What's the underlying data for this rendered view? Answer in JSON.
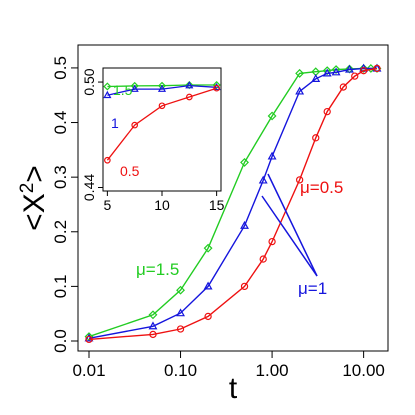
{
  "chart_data": [
    {
      "type": "line",
      "x_scale": "log",
      "xlim": [
        0.01,
        14
      ],
      "ylim": [
        0,
        0.52
      ],
      "x_ticks": [
        0.01,
        0.1,
        1,
        10
      ],
      "x_tick_labels": [
        "0.01",
        "0.10",
        "1.00",
        "10.00"
      ],
      "y_ticks": [
        0,
        0.1,
        0.2,
        0.3,
        0.4,
        0.5
      ],
      "y_tick_labels": [
        "0.0",
        "0.1",
        "0.2",
        "0.3",
        "0.4",
        "0.5"
      ],
      "xlabel": "t",
      "ylabel_parts": [
        "<X",
        "2",
        ">"
      ],
      "grid": false,
      "series": [
        {
          "name": "μ=1.5",
          "color": "#22cc22",
          "marker": "diamond",
          "x": [
            0.01,
            0.05,
            0.1,
            0.2,
            0.5,
            1.0,
            2.0,
            3.0,
            4.0,
            5.0,
            7.0,
            10.0,
            12.0,
            14.0
          ],
          "y": [
            0.008,
            0.048,
            0.093,
            0.17,
            0.327,
            0.412,
            0.49,
            0.493,
            0.495,
            0.497,
            0.498,
            0.499,
            0.499,
            0.499
          ]
        },
        {
          "name": "μ=1",
          "color": "#1515dd",
          "marker": "triangle",
          "x": [
            0.01,
            0.05,
            0.1,
            0.2,
            0.5,
            0.8,
            1.0,
            2.0,
            3.0,
            4.0,
            5.0,
            7.0,
            10.0,
            14.0
          ],
          "y": [
            0.005,
            0.027,
            0.051,
            0.1,
            0.211,
            0.294,
            0.338,
            0.457,
            0.48,
            0.49,
            0.492,
            0.497,
            0.499,
            0.499
          ]
        },
        {
          "name": "μ=0.5",
          "color": "#ee1111",
          "marker": "circle",
          "x": [
            0.01,
            0.05,
            0.1,
            0.2,
            0.5,
            0.8,
            1.0,
            2.0,
            3.0,
            4.0,
            6.0,
            8.0,
            10.0,
            14.0
          ],
          "y": [
            0.003,
            0.012,
            0.022,
            0.045,
            0.1,
            0.15,
            0.182,
            0.295,
            0.372,
            0.42,
            0.465,
            0.485,
            0.495,
            0.499
          ]
        }
      ],
      "labels": {
        "mu15": "μ=1.5",
        "mu1": "μ=1",
        "mu05": "μ=0.5"
      }
    },
    {
      "type": "line",
      "role": "inset",
      "xlim": [
        4.6,
        15.4
      ],
      "ylim": [
        0.438,
        0.508
      ],
      "x_ticks": [
        5,
        10,
        15
      ],
      "x_tick_labels": [
        "5",
        "10",
        "15"
      ],
      "y_ticks": [
        0.44,
        0.5
      ],
      "y_tick_labels": [
        "0.44",
        "0.50"
      ],
      "grid": false,
      "series": [
        {
          "name": "1.5",
          "color": "#22cc22",
          "marker": "diamond",
          "x": [
            5,
            7.5,
            10,
            12.5,
            15
          ],
          "y": [
            0.4975,
            0.4978,
            0.4979,
            0.4983,
            0.4983
          ]
        },
        {
          "name": "1",
          "color": "#1515dd",
          "marker": "triangle",
          "x": [
            5,
            7.5,
            10,
            12.5,
            15
          ],
          "y": [
            0.4925,
            0.496,
            0.496,
            0.498,
            0.497
          ]
        },
        {
          "name": "0.5",
          "color": "#ee1111",
          "marker": "circle",
          "x": [
            5,
            7.5,
            10,
            12.5,
            15
          ],
          "y": [
            0.4555,
            0.4755,
            0.4865,
            0.4915,
            0.4965
          ]
        }
      ],
      "labels": {
        "l15": "1.5",
        "l1": "1",
        "l05": "0.5"
      }
    }
  ]
}
